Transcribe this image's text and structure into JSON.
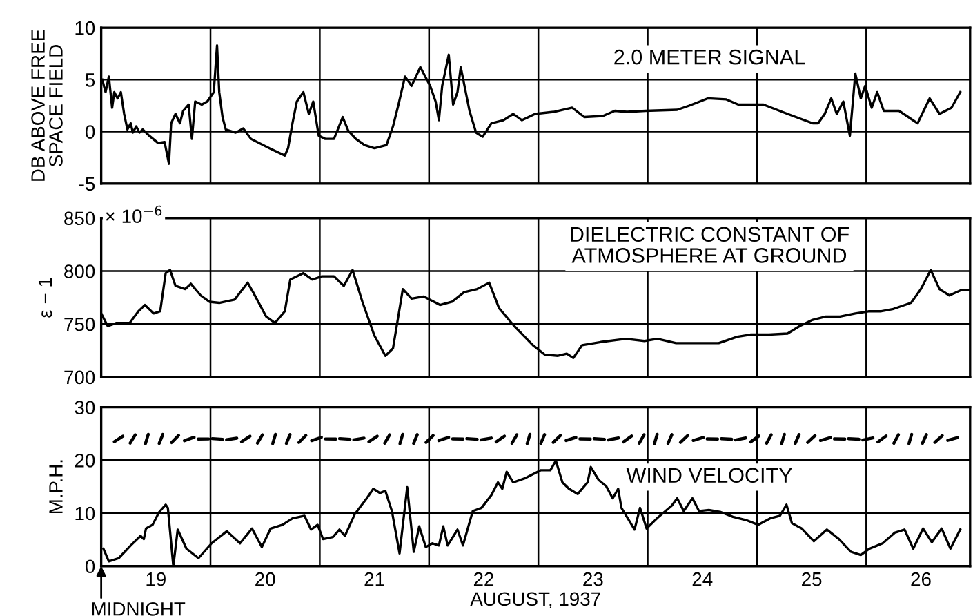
{
  "chart_data": [
    {
      "type": "line",
      "title": "2.0 METER SIGNAL",
      "ylabel": "DB ABOVE FREE\nSPACE FIELD",
      "xlim": [
        19,
        26.95
      ],
      "ylim": [
        -5,
        10
      ],
      "yticks": [
        -5,
        0,
        5,
        10
      ],
      "grid": "y",
      "tick_labels": "y",
      "ref_lines": [
        {
          "axis": "x",
          "value": 20
        },
        {
          "axis": "x",
          "value": 21
        },
        {
          "axis": "x",
          "value": 22
        },
        {
          "axis": "x",
          "value": 23
        },
        {
          "axis": "x",
          "value": 24
        },
        {
          "axis": "x",
          "value": 25
        },
        {
          "axis": "x",
          "value": 26
        }
      ],
      "series": [
        {
          "color": "#000000",
          "x": [
            19.01,
            19.04,
            19.07,
            19.1,
            19.12,
            19.15,
            19.18,
            19.21,
            19.24,
            19.27,
            19.29,
            19.32,
            19.35,
            19.38,
            19.44,
            19.52,
            19.58,
            19.62,
            19.64,
            19.68,
            19.72,
            19.75,
            19.8,
            19.83,
            19.86,
            19.92,
            19.97,
            20.03,
            20.06,
            20.08,
            20.11,
            20.14,
            20.23,
            20.3,
            20.37,
            20.54,
            20.68,
            20.71,
            20.75,
            20.79,
            20.85,
            20.9,
            20.94,
            20.99,
            21.05,
            21.13,
            21.21,
            21.26,
            21.33,
            21.41,
            21.5,
            21.61,
            21.67,
            21.72,
            21.78,
            21.84,
            21.92,
            22.01,
            22.06,
            22.09,
            22.12,
            22.18,
            22.22,
            22.26,
            22.29,
            22.37,
            22.43,
            22.49,
            22.57,
            22.68,
            22.77,
            22.85,
            22.97,
            23.14,
            23.31,
            23.42,
            23.59,
            23.7,
            23.81,
            23.98,
            24.27,
            24.38,
            24.55,
            24.72,
            24.83,
            25.06,
            25.28,
            25.51,
            25.56,
            25.62,
            25.68,
            25.73,
            25.79,
            25.85,
            25.9,
            25.95,
            25.99,
            26.05,
            26.1,
            26.16,
            26.3,
            26.47,
            26.58,
            26.67,
            26.78,
            26.86
          ],
          "values": [
            5.0,
            3.8,
            5.3,
            2.3,
            3.8,
            3.2,
            3.8,
            1.7,
            0.2,
            0.8,
            -0.1,
            0.5,
            -0.1,
            0.2,
            -0.4,
            -1.1,
            -1.0,
            -3.1,
            0.8,
            1.7,
            0.8,
            2.0,
            2.6,
            -0.7,
            2.9,
            2.6,
            2.9,
            3.8,
            8.3,
            3.8,
            1.4,
            0.2,
            -0.1,
            0.3,
            -0.7,
            -1.6,
            -2.3,
            -1.6,
            0.8,
            2.9,
            3.8,
            1.7,
            2.9,
            -0.4,
            -0.7,
            -0.7,
            1.4,
            0.1,
            -0.7,
            -1.3,
            -1.6,
            -1.3,
            0.5,
            2.6,
            5.3,
            4.4,
            6.2,
            4.4,
            2.9,
            1.1,
            4.4,
            7.4,
            2.6,
            3.8,
            6.2,
            2.0,
            -0.1,
            -0.5,
            0.8,
            1.1,
            1.7,
            1.1,
            1.7,
            1.9,
            2.3,
            1.4,
            1.5,
            2.0,
            1.9,
            2.0,
            2.1,
            2.5,
            3.2,
            3.1,
            2.6,
            2.6,
            1.7,
            0.8,
            0.8,
            1.7,
            3.2,
            1.7,
            2.9,
            -0.4,
            5.6,
            3.2,
            4.4,
            2.3,
            3.8,
            2.0,
            2.0,
            0.8,
            3.2,
            1.7,
            2.3,
            3.8
          ]
        }
      ]
    },
    {
      "type": "line",
      "title": "DIELECTRIC CONSTANT OF\nATMOSPHERE AT GROUND",
      "ylabel": "ε − 1",
      "xlim": [
        19,
        26.95
      ],
      "ylim": [
        700,
        850
      ],
      "yticks": [
        700,
        750,
        800,
        850
      ],
      "grid": "y",
      "tick_labels": "y",
      "annotations": [
        "× 10$^{−6}$"
      ],
      "ref_lines": [
        {
          "axis": "x",
          "value": 20
        },
        {
          "axis": "x",
          "value": 21
        },
        {
          "axis": "x",
          "value": 22
        },
        {
          "axis": "x",
          "value": 23
        },
        {
          "axis": "x",
          "value": 24
        },
        {
          "axis": "x",
          "value": 25
        },
        {
          "axis": "x",
          "value": 26
        }
      ],
      "series": [
        {
          "color": "#000000",
          "x": [
            19.0,
            19.06,
            19.14,
            19.26,
            19.34,
            19.4,
            19.48,
            19.54,
            19.59,
            19.63,
            19.68,
            19.77,
            19.82,
            19.91,
            19.99,
            20.08,
            20.22,
            20.34,
            20.39,
            20.51,
            20.59,
            20.68,
            20.73,
            20.85,
            20.93,
            21.02,
            21.13,
            21.22,
            21.3,
            21.39,
            21.5,
            21.6,
            21.67,
            21.76,
            21.84,
            21.95,
            22.1,
            22.21,
            22.32,
            22.44,
            22.55,
            22.64,
            22.78,
            22.95,
            23.06,
            23.18,
            23.26,
            23.32,
            23.4,
            23.57,
            23.8,
            23.97,
            24.09,
            24.26,
            24.48,
            24.65,
            24.82,
            24.94,
            25.11,
            25.28,
            25.39,
            25.51,
            25.63,
            25.76,
            25.9,
            26.02,
            26.13,
            26.24,
            26.41,
            26.5,
            26.59,
            26.67,
            26.76,
            26.87,
            26.94
          ],
          "values": [
            760,
            748,
            751,
            751,
            762,
            768,
            760,
            762,
            798,
            801,
            786,
            783,
            788,
            777,
            771,
            770,
            773,
            789,
            780,
            757,
            751,
            762,
            792,
            798,
            792,
            795,
            795,
            786,
            801,
            771,
            739,
            720,
            727,
            783,
            774,
            776,
            768,
            771,
            780,
            783,
            789,
            765,
            748,
            730,
            721,
            720,
            722,
            718,
            730,
            733,
            736,
            734,
            736,
            732,
            732,
            732,
            738,
            740,
            740,
            741,
            748,
            754,
            757,
            757,
            760,
            762,
            762,
            764,
            770,
            783,
            801,
            783,
            777,
            782,
            782
          ]
        }
      ]
    },
    {
      "type": "line",
      "title": "WIND VELOCITY",
      "ylabel": "M.P.H.",
      "xlabel": "AUGUST, 1937",
      "xlim": [
        19,
        26.95
      ],
      "ylim": [
        0,
        30
      ],
      "yticks": [
        0,
        10,
        20,
        30
      ],
      "grid": "y",
      "xticks": [
        {
          "value": 19.5,
          "label": "19"
        },
        {
          "value": 20.5,
          "label": "20"
        },
        {
          "value": 21.5,
          "label": "21"
        },
        {
          "value": 22.5,
          "label": "22"
        },
        {
          "value": 23.5,
          "label": "23"
        },
        {
          "value": 24.5,
          "label": "24"
        },
        {
          "value": 25.5,
          "label": "25"
        },
        {
          "value": 26.5,
          "label": "26"
        }
      ],
      "annotations": [
        "MIDNIGHT"
      ],
      "ref_lines": [
        {
          "axis": "x",
          "value": 20
        },
        {
          "axis": "x",
          "value": 21
        },
        {
          "axis": "x",
          "value": 22
        },
        {
          "axis": "x",
          "value": 23
        },
        {
          "axis": "x",
          "value": 24
        },
        {
          "axis": "x",
          "value": 25
        },
        {
          "axis": "x",
          "value": 26
        }
      ],
      "series": [
        {
          "color": "#000000",
          "x": [
            19.02,
            19.07,
            19.16,
            19.27,
            19.36,
            19.39,
            19.41,
            19.47,
            19.53,
            19.59,
            19.61,
            19.66,
            19.7,
            19.78,
            19.89,
            20.01,
            20.15,
            20.27,
            20.38,
            20.47,
            20.55,
            20.66,
            20.75,
            20.86,
            20.92,
            20.98,
            21.03,
            21.12,
            21.18,
            21.23,
            21.32,
            21.43,
            21.49,
            21.55,
            21.6,
            21.66,
            21.73,
            21.8,
            21.86,
            21.91,
            21.97,
            22.03,
            22.09,
            22.13,
            22.17,
            22.26,
            22.31,
            22.4,
            22.48,
            22.57,
            22.63,
            22.67,
            22.71,
            22.77,
            22.88,
            23.02,
            23.11,
            23.16,
            23.22,
            23.28,
            23.36,
            23.45,
            23.48,
            23.55,
            23.62,
            23.68,
            23.73,
            23.76,
            23.88,
            23.93,
            23.99,
            24.1,
            24.22,
            24.27,
            24.33,
            24.41,
            24.47,
            24.56,
            24.67,
            24.78,
            24.9,
            25.01,
            25.12,
            25.21,
            25.27,
            25.32,
            25.41,
            25.52,
            25.64,
            25.75,
            25.86,
            25.95,
            26.03,
            26.15,
            26.26,
            26.35,
            26.43,
            26.52,
            26.6,
            26.69,
            26.77,
            26.86
          ],
          "values": [
            3.3,
            0.9,
            1.5,
            3.9,
            5.7,
            5.1,
            7.1,
            7.8,
            10.2,
            11.6,
            11.0,
            0,
            6.9,
            3.3,
            1.5,
            4.3,
            6.6,
            4.3,
            7.1,
            3.6,
            7.1,
            7.8,
            9.0,
            9.5,
            6.9,
            7.8,
            5.1,
            5.5,
            6.9,
            5.7,
            9.8,
            12.8,
            14.6,
            13.8,
            14.2,
            10.4,
            2.4,
            14.9,
            2.7,
            7.5,
            3.6,
            4.3,
            3.9,
            7.5,
            3.9,
            6.9,
            3.9,
            10.4,
            11.0,
            13.4,
            15.8,
            14.6,
            17.8,
            15.8,
            16.6,
            18.1,
            18.1,
            19.9,
            15.8,
            14.6,
            13.6,
            15.8,
            18.7,
            16.3,
            15.1,
            12.8,
            14.6,
            11.0,
            6.9,
            11.0,
            7.1,
            9.3,
            11.4,
            12.8,
            10.4,
            12.8,
            10.4,
            10.6,
            10.2,
            9.3,
            8.7,
            7.8,
            9.0,
            9.5,
            11.6,
            8.1,
            7.1,
            4.7,
            6.9,
            5.1,
            2.7,
            2.1,
            3.3,
            4.3,
            6.3,
            6.9,
            3.3,
            7.1,
            4.5,
            7.1,
            3.3,
            6.9
          ]
        }
      ]
    }
  ]
}
